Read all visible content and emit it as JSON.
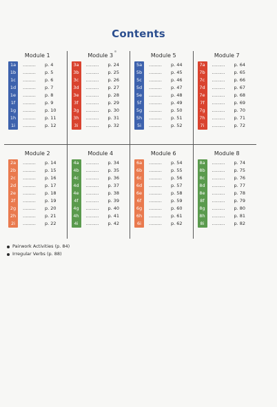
{
  "title": "Contents",
  "modules": [
    {
      "name": "Module 1",
      "color": "#3d62ad",
      "entries": [
        {
          "code": "1a",
          "dots": "………",
          "page": "p.  4"
        },
        {
          "code": "1b",
          "dots": "………",
          "page": "p.  5"
        },
        {
          "code": "1c",
          "dots": "………",
          "page": "p.  6"
        },
        {
          "code": "1d",
          "dots": "………",
          "page": "p.  7"
        },
        {
          "code": "1e",
          "dots": "………",
          "page": "p.  8"
        },
        {
          "code": "1f",
          "dots": "………",
          "page": "p.  9"
        },
        {
          "code": "1g",
          "dots": "………",
          "page": "p. 10"
        },
        {
          "code": "1h",
          "dots": "………",
          "page": "p. 11"
        },
        {
          "code": "1i",
          "dots": "………",
          "page": "p. 12"
        }
      ]
    },
    {
      "name": "Module 3",
      "color": "#d9432f",
      "entries": [
        {
          "code": "3a",
          "dots": "………",
          "page": "p. 24"
        },
        {
          "code": "3b",
          "dots": "………",
          "page": "p. 25"
        },
        {
          "code": "3c",
          "dots": "………",
          "page": "p. 26"
        },
        {
          "code": "3d",
          "dots": "………",
          "page": "p. 27"
        },
        {
          "code": "3e",
          "dots": "………",
          "page": "p. 28"
        },
        {
          "code": "3f",
          "dots": "………",
          "page": "p. 29"
        },
        {
          "code": "3g",
          "dots": "………",
          "page": "p. 30"
        },
        {
          "code": "3h",
          "dots": "………",
          "page": "p. 31"
        },
        {
          "code": "3i",
          "dots": "………",
          "page": "p. 32"
        }
      ]
    },
    {
      "name": "Module 5",
      "color": "#3d62ad",
      "entries": [
        {
          "code": "5a",
          "dots": "………",
          "page": "p. 44"
        },
        {
          "code": "5b",
          "dots": "………",
          "page": "p. 45"
        },
        {
          "code": "5c",
          "dots": "………",
          "page": "p. 46"
        },
        {
          "code": "5d",
          "dots": "………",
          "page": "p. 47"
        },
        {
          "code": "5e",
          "dots": "………",
          "page": "p. 48"
        },
        {
          "code": "5f",
          "dots": "………",
          "page": "p. 49"
        },
        {
          "code": "5g",
          "dots": "………",
          "page": "p. 50"
        },
        {
          "code": "5h",
          "dots": "………",
          "page": "p. 51"
        },
        {
          "code": "5i",
          "dots": "………",
          "page": "p. 52"
        }
      ]
    },
    {
      "name": "Module 7",
      "color": "#d9432f",
      "entries": [
        {
          "code": "7a",
          "dots": "………",
          "page": "p. 64"
        },
        {
          "code": "7b",
          "dots": "………",
          "page": "p. 65"
        },
        {
          "code": "7c",
          "dots": "………",
          "page": "p. 66"
        },
        {
          "code": "7d",
          "dots": "………",
          "page": "p. 67"
        },
        {
          "code": "7e",
          "dots": "………",
          "page": "p. 68"
        },
        {
          "code": "7f",
          "dots": "………",
          "page": "p. 69"
        },
        {
          "code": "7g",
          "dots": "………",
          "page": "p. 70"
        },
        {
          "code": "7h",
          "dots": "………",
          "page": "p. 71"
        },
        {
          "code": "7i",
          "dots": "………",
          "page": "p. 72"
        }
      ]
    },
    {
      "name": "Module 2",
      "color": "#e97a4e",
      "entries": [
        {
          "code": "2a",
          "dots": "………",
          "page": "p. 14"
        },
        {
          "code": "2b",
          "dots": "………",
          "page": "p. 15"
        },
        {
          "code": "2c",
          "dots": "………",
          "page": "p. 16"
        },
        {
          "code": "2d",
          "dots": "………",
          "page": "p. 17"
        },
        {
          "code": "2e",
          "dots": "………",
          "page": "p. 18"
        },
        {
          "code": "2f",
          "dots": "………",
          "page": "p. 19"
        },
        {
          "code": "2g",
          "dots": "………",
          "page": "p. 20"
        },
        {
          "code": "2h",
          "dots": "………",
          "page": "p. 21"
        },
        {
          "code": "2i",
          "dots": "………",
          "page": "p. 22"
        }
      ]
    },
    {
      "name": "Module 4",
      "color": "#5a9a4d",
      "entries": [
        {
          "code": "4a",
          "dots": "………",
          "page": "p. 34"
        },
        {
          "code": "4b",
          "dots": "………",
          "page": "p. 35"
        },
        {
          "code": "4c",
          "dots": "………",
          "page": "p. 36"
        },
        {
          "code": "4d",
          "dots": "………",
          "page": "p. 37"
        },
        {
          "code": "4e",
          "dots": "………",
          "page": "p. 38"
        },
        {
          "code": "4f",
          "dots": "………",
          "page": "p. 39"
        },
        {
          "code": "4g",
          "dots": "………",
          "page": "p. 40"
        },
        {
          "code": "4h",
          "dots": "………",
          "page": "p. 41"
        },
        {
          "code": "4i",
          "dots": "………",
          "page": "p. 42"
        }
      ]
    },
    {
      "name": "Module 6",
      "color": "#e97a4e",
      "entries": [
        {
          "code": "6a",
          "dots": "………",
          "page": "p. 54"
        },
        {
          "code": "6b",
          "dots": "………",
          "page": "p. 55"
        },
        {
          "code": "6c",
          "dots": "………",
          "page": "p. 56"
        },
        {
          "code": "6d",
          "dots": "………",
          "page": "p. 57"
        },
        {
          "code": "6e",
          "dots": "………",
          "page": "p. 58"
        },
        {
          "code": "6f",
          "dots": "………",
          "page": "p. 59"
        },
        {
          "code": "6g",
          "dots": "………",
          "page": "p. 60"
        },
        {
          "code": "6h",
          "dots": "………",
          "page": "p. 61"
        },
        {
          "code": "6i",
          "dots": "………",
          "page": "p. 62"
        }
      ]
    },
    {
      "name": "Module 8",
      "color": "#5a9a4d",
      "entries": [
        {
          "code": "8a",
          "dots": "………",
          "page": "p. 74"
        },
        {
          "code": "8b",
          "dots": "………",
          "page": "p. 75"
        },
        {
          "code": "8c",
          "dots": "………",
          "page": "p. 76"
        },
        {
          "code": "8d",
          "dots": "………",
          "page": "p. 77"
        },
        {
          "code": "8e",
          "dots": "………",
          "page": "p. 78"
        },
        {
          "code": "8f",
          "dots": "………",
          "page": "p. 79"
        },
        {
          "code": "8g",
          "dots": "………",
          "page": "p. 80"
        },
        {
          "code": "8h",
          "dots": "………",
          "page": "p. 81"
        },
        {
          "code": "8i",
          "dots": "………",
          "page": "p. 82"
        }
      ]
    }
  ],
  "notes": [
    "Pairwork Activities (p. 84)",
    "Irregular Verbs (p. 88)"
  ]
}
